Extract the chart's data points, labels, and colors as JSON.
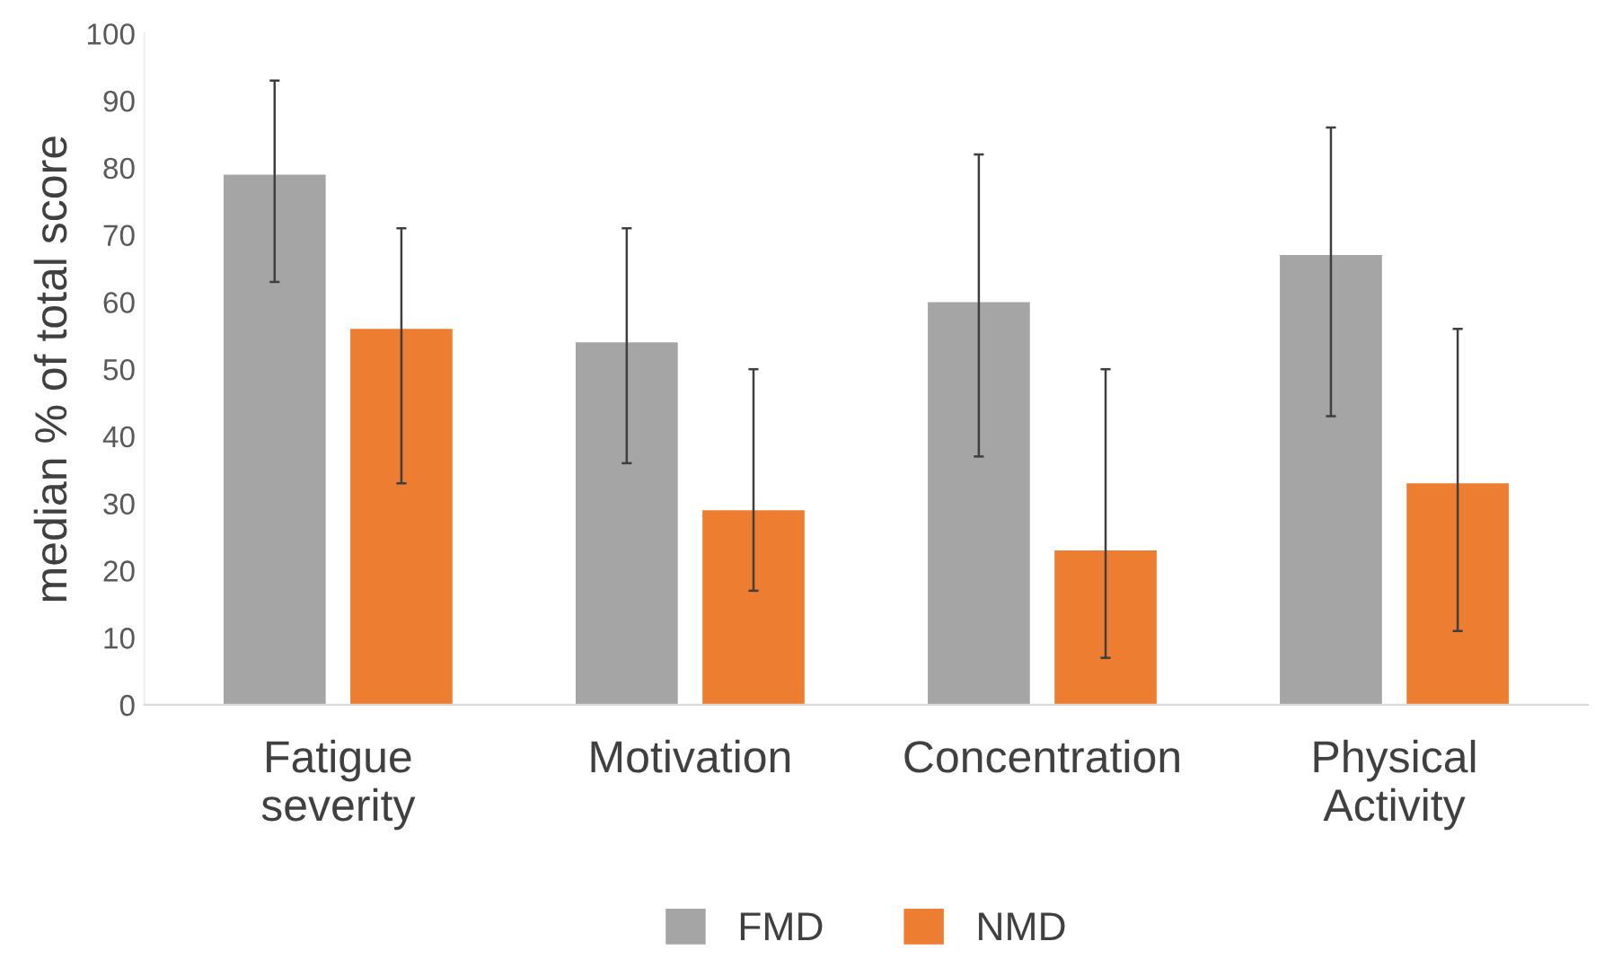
{
  "chart_data": {
    "type": "bar",
    "ylabel": "median % of total score",
    "categories": [
      "Fatigue\nseverity",
      "Motivation",
      "Concentration",
      "Physical\nActivity"
    ],
    "series": [
      {
        "name": "FMD",
        "color": "#a5a5a5",
        "values": [
          79,
          54,
          60,
          67
        ],
        "errors": [
          [
            63,
            93
          ],
          [
            36,
            71
          ],
          [
            37,
            82
          ],
          [
            43,
            86
          ]
        ]
      },
      {
        "name": "NMD",
        "color": "#ed7d31",
        "values": [
          56,
          29,
          23,
          33
        ],
        "errors": [
          [
            33,
            71
          ],
          [
            17,
            50
          ],
          [
            7,
            50
          ],
          [
            11,
            56
          ]
        ]
      }
    ],
    "ylim": [
      0,
      100
    ],
    "yticks": [
      0,
      10,
      20,
      30,
      40,
      50,
      60,
      70,
      80,
      90,
      100
    ],
    "grid": false,
    "legend": "bottom"
  }
}
